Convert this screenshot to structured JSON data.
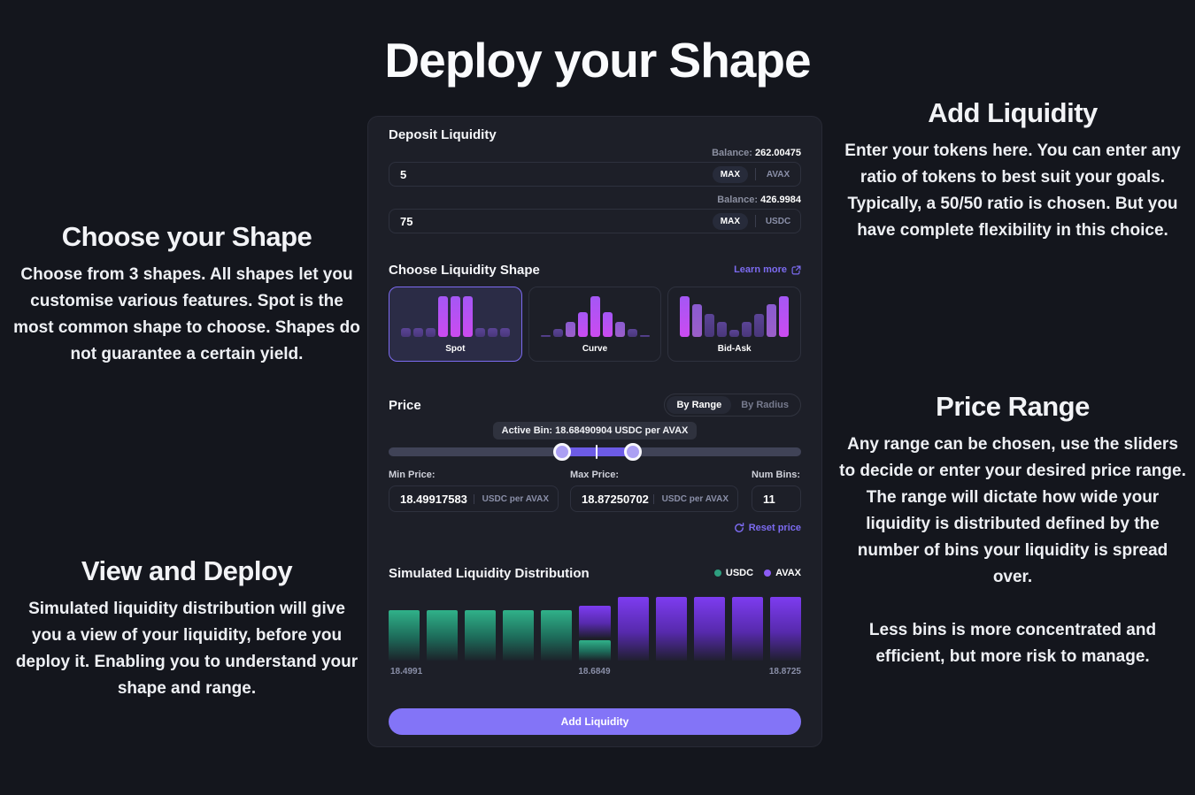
{
  "page": {
    "title": "Deploy your Shape",
    "bg": "#14161d",
    "accent": "#7c6bf0"
  },
  "annotations": {
    "choose_shape": {
      "title": "Choose your Shape",
      "body": "Choose from 3 shapes. All shapes let you customise various features. Spot is the most common shape to choose. Shapes do not guarantee a certain yield."
    },
    "view_deploy": {
      "title": "View and Deploy",
      "body": "Simulated liquidity distribution will give you a view of your liquidity, before you deploy it. Enabling you to understand your shape and range."
    },
    "add_liquidity": {
      "title": "Add Liquidity",
      "body": "Enter your tokens here. You can enter any ratio of tokens to best suit your goals. Typically, a 50/50 ratio is chosen. But you have complete flexibility in this choice."
    },
    "price_range": {
      "title": "Price Range",
      "body1": "Any range can be chosen, use the sliders to decide or enter your desired price range. The range will dictate how wide your liquidity is distributed defined by the number of bins your liquidity is spread over.",
      "body2": "Less bins is more concentrated and efficient, but more risk to manage."
    }
  },
  "panel": {
    "deposit": {
      "title": "Deposit Liquidity",
      "rows": [
        {
          "balance_label": "Balance:",
          "balance": "262.00475",
          "value": "5",
          "max_label": "MAX",
          "token": "AVAX"
        },
        {
          "balance_label": "Balance:",
          "balance": "426.9984",
          "value": "75",
          "max_label": "MAX",
          "token": "USDC"
        }
      ]
    },
    "shape": {
      "title": "Choose Liquidity Shape",
      "learn_more": "Learn more",
      "options": [
        {
          "label": "Spot",
          "selected": true,
          "bars": [
            22,
            22,
            22,
            100,
            100,
            100,
            22,
            22,
            22
          ],
          "tiers": [
            "tu",
            "tu",
            "tu",
            "tb",
            "tb",
            "tb",
            "tu",
            "tu",
            "tu"
          ]
        },
        {
          "label": "Curve",
          "selected": false,
          "bars": [
            4,
            20,
            36,
            60,
            100,
            60,
            36,
            20,
            4
          ],
          "tiers": [
            "tu",
            "tu",
            "tm",
            "tb",
            "tb",
            "tb",
            "tm",
            "tu",
            "tu"
          ]
        },
        {
          "label": "Bid-Ask",
          "selected": false,
          "bars": [
            100,
            80,
            56,
            36,
            18,
            36,
            56,
            80,
            100
          ],
          "tiers": [
            "tb",
            "tm",
            "tu",
            "tu",
            "tu",
            "tu",
            "tu",
            "tm",
            "tb"
          ]
        }
      ]
    },
    "price": {
      "title": "Price",
      "toggle_options": [
        "By Range",
        "By Radius"
      ],
      "toggle_selected": "By Range",
      "active_bin_tooltip": "Active Bin: 18.68490904 USDC per AVAX",
      "slider": {
        "left_pct": 42,
        "right_pct": 59.3,
        "mid_pct": 50.4
      },
      "min_label": "Min Price:",
      "min_value": "18.49917583",
      "min_unit": "USDC per AVAX",
      "max_label": "Max Price:",
      "max_value": "18.87250702",
      "max_unit": "USDC per AVAX",
      "bins_label": "Num Bins:",
      "bins_value": "11",
      "reset_label": "Reset price"
    },
    "distribution": {
      "title": "Simulated Liquidity Distribution",
      "legend": [
        {
          "label": "USDC",
          "color": "#2e9e7f"
        },
        {
          "label": "AVAX",
          "color": "#8c5cf5"
        }
      ],
      "x_labels": [
        "18.4991",
        "18.6849",
        "18.8725"
      ]
    },
    "submit_label": "Add Liquidity"
  },
  "chart_data": {
    "type": "bar",
    "stacked": true,
    "title": "Simulated Liquidity Distribution",
    "categories": [
      "bin1",
      "bin2",
      "bin3",
      "bin4",
      "bin5",
      "bin6-active",
      "bin7",
      "bin8",
      "bin9",
      "bin10",
      "bin11"
    ],
    "series": [
      {
        "name": "USDC",
        "color": "#2e9e7f",
        "values": [
          0.79,
          0.79,
          0.79,
          0.79,
          0.79,
          0.32,
          0,
          0,
          0,
          0,
          0
        ]
      },
      {
        "name": "AVAX",
        "color": "#7d3cf0",
        "values": [
          0,
          0,
          0,
          0,
          0,
          0.5,
          1,
          1,
          1,
          1,
          1
        ]
      }
    ],
    "x_tick_labels": {
      "0": "18.4991",
      "5": "18.6849",
      "10": "18.8725"
    },
    "active_bin_price": "18.68490904",
    "min_price": "18.49917583",
    "max_price": "18.87250702",
    "num_bins": 11,
    "ylim": [
      0,
      1
    ],
    "grid": false,
    "legend_position": "top-right"
  }
}
